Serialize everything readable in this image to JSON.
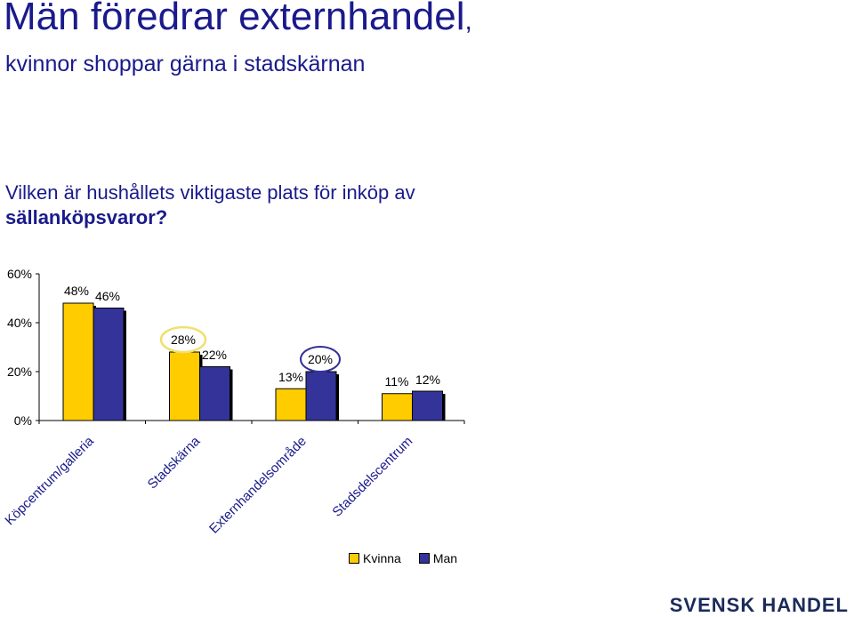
{
  "header": {
    "title": "Män föredrar externhandel",
    "title_comma": ",",
    "subtitle": "kvinnor shoppar gärna i stadskärnan"
  },
  "question": {
    "line1": "Vilken är hushållets viktigaste plats för inköp av",
    "line2": "sällanköpsvaror?"
  },
  "logo": {
    "text": "SVENSK HANDEL"
  },
  "colors": {
    "kvinna": "#ffcc00",
    "man": "#333399",
    "highlight_kvinna": "#f0e070",
    "highlight_man": "#333399"
  },
  "chart_data": {
    "type": "bar",
    "categories": [
      "Köpcentrum/galleria",
      "Stadskärna",
      "Externhandelsområde",
      "Stadsdelscentrum"
    ],
    "series": [
      {
        "name": "Kvinna",
        "values": [
          48,
          28,
          13,
          11
        ],
        "labels": [
          "48%",
          "28%",
          "13%",
          "11%"
        ]
      },
      {
        "name": "Man",
        "values": [
          46,
          22,
          20,
          12
        ],
        "labels": [
          "46%",
          "22%",
          "20%",
          "12%"
        ]
      }
    ],
    "yticks": [
      "0%",
      "20%",
      "40%",
      "60%"
    ],
    "ylim": [
      0,
      60
    ],
    "grid": false,
    "legend": "bottom"
  }
}
